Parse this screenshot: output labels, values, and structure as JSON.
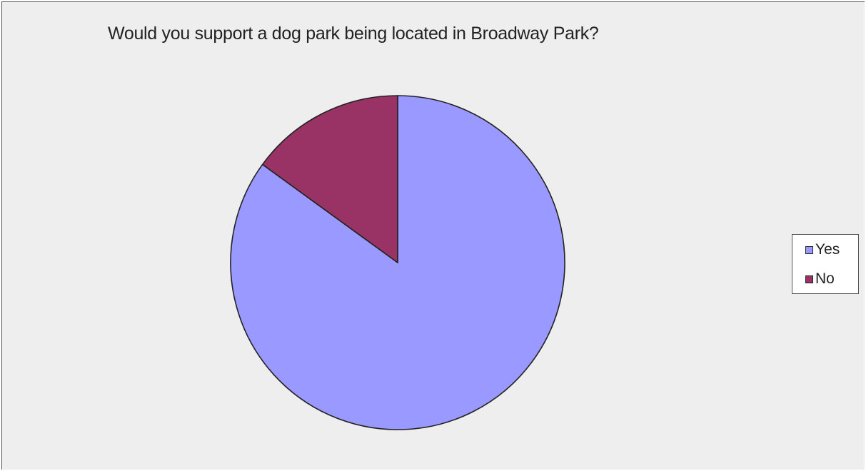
{
  "chart_data": {
    "type": "pie",
    "title": "Would you support a dog park being located in Broadway Park?",
    "categories": [
      "Yes",
      "No"
    ],
    "values": [
      85,
      15
    ],
    "colors": [
      "#9999ff",
      "#993366"
    ],
    "legend_position": "right",
    "start_angle_deg": 0,
    "direction": "counterclockwise"
  },
  "legend": {
    "items": [
      {
        "label": "Yes",
        "color": "#9999ff"
      },
      {
        "label": "No",
        "color": "#993366"
      }
    ]
  }
}
